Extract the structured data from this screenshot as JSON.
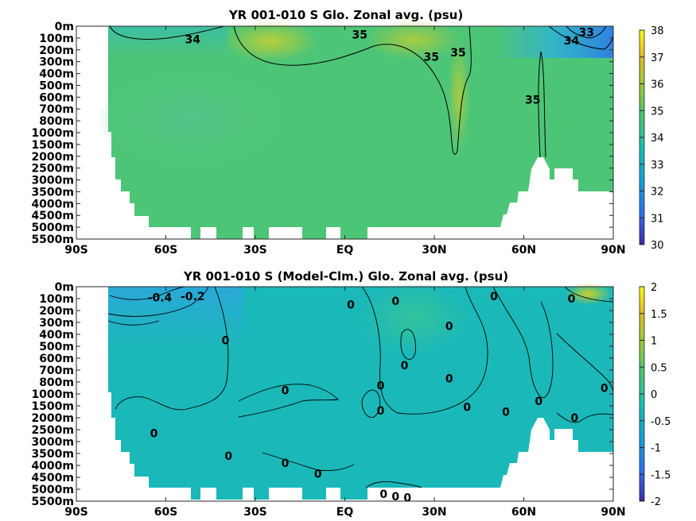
{
  "colors": {
    "colormap": [
      "#3e26a8",
      "#2f6ff0",
      "#12a2d4",
      "#1bbeb6",
      "#4ac66f",
      "#9ec93b",
      "#e1bd2b",
      "#f9fb14"
    ],
    "land": "#ffffff",
    "contour": "#000000"
  },
  "chart_data": [
    {
      "type": "heatmap",
      "title": "YR 001-010 S Glo. Zonal avg. (psu)",
      "x_ticks": [
        "90S",
        "60S",
        "30S",
        "EQ",
        "30N",
        "60N",
        "90N"
      ],
      "y_ticks": [
        "0m",
        "100m",
        "200m",
        "300m",
        "400m",
        "500m",
        "600m",
        "700m",
        "800m",
        "1000m",
        "1500m",
        "2000m",
        "2500m",
        "3000m",
        "3500m",
        "4000m",
        "4500m",
        "5000m",
        "5500m"
      ],
      "colorbar_ticks": [
        "38",
        "37",
        "36",
        "35",
        "34",
        "33",
        "32",
        "31",
        "30"
      ],
      "clim": [
        30,
        38
      ],
      "xlim": [
        -90,
        90
      ],
      "contour_labels": [
        {
          "text": "34",
          "lat": -51,
          "depth_index": 1.1
        },
        {
          "text": "35",
          "lat": 5,
          "depth_index": 0.7
        },
        {
          "text": "35",
          "lat": 29,
          "depth_index": 2.6
        },
        {
          "text": "35",
          "lat": 38,
          "depth_index": 2.2
        },
        {
          "text": "35",
          "lat": 63,
          "depth_index": 6.2
        },
        {
          "text": "34",
          "lat": 76,
          "depth_index": 1.2
        },
        {
          "text": "33",
          "lat": 81,
          "depth_index": 0.5
        }
      ]
    },
    {
      "type": "heatmap",
      "title": "YR 001-010 S (Model-Clm.) Glo. Zonal avg. (psu)",
      "x_ticks": [
        "90S",
        "60S",
        "30S",
        "EQ",
        "30N",
        "60N",
        "90N"
      ],
      "y_ticks": [
        "0m",
        "100m",
        "200m",
        "300m",
        "400m",
        "500m",
        "600m",
        "700m",
        "800m",
        "1000m",
        "1500m",
        "2000m",
        "2500m",
        "3000m",
        "3500m",
        "4000m",
        "4500m",
        "5000m",
        "5500m"
      ],
      "colorbar_ticks": [
        "2",
        "1.5",
        "1",
        "0.5",
        "0",
        "-0.5",
        "-1",
        "-1.5",
        "-2"
      ],
      "clim": [
        -2,
        2
      ],
      "xlim": [
        -90,
        90
      ],
      "contour_labels": [
        {
          "text": "-0.4",
          "lat": -62,
          "depth_index": 0.9
        },
        {
          "text": "-0.2",
          "lat": -51,
          "depth_index": 0.8
        },
        {
          "text": "0",
          "lat": -40,
          "depth_index": 4.5
        },
        {
          "text": "0",
          "lat": -20,
          "depth_index": 8.7
        },
        {
          "text": "0",
          "lat": -64,
          "depth_index": 12.3
        },
        {
          "text": "0",
          "lat": -39,
          "depth_index": 14.2
        },
        {
          "text": "0",
          "lat": -20,
          "depth_index": 14.8
        },
        {
          "text": "0",
          "lat": -9,
          "depth_index": 15.7
        },
        {
          "text": "0",
          "lat": 2,
          "depth_index": 1.5
        },
        {
          "text": "0",
          "lat": 12,
          "depth_index": 8.3
        },
        {
          "text": "0",
          "lat": 12,
          "depth_index": 10.4
        },
        {
          "text": "0",
          "lat": 17,
          "depth_index": 1.2
        },
        {
          "text": "0",
          "lat": 20,
          "depth_index": 6.6
        },
        {
          "text": "0",
          "lat": 13,
          "depth_index": 17.4
        },
        {
          "text": "0",
          "lat": 17,
          "depth_index": 17.6
        },
        {
          "text": "0",
          "lat": 21,
          "depth_index": 17.7
        },
        {
          "text": "0",
          "lat": 35,
          "depth_index": 3.3
        },
        {
          "text": "0",
          "lat": 35,
          "depth_index": 7.7
        },
        {
          "text": "0",
          "lat": 41,
          "depth_index": 10.1
        },
        {
          "text": "0",
          "lat": 50,
          "depth_index": 0.8
        },
        {
          "text": "0",
          "lat": 54,
          "depth_index": 10.5
        },
        {
          "text": "0",
          "lat": 65,
          "depth_index": 9.6
        },
        {
          "text": "0",
          "lat": 76,
          "depth_index": 1.0
        },
        {
          "text": "0",
          "lat": 77,
          "depth_index": 11.0
        },
        {
          "text": "0",
          "lat": 87,
          "depth_index": 8.5
        }
      ]
    }
  ]
}
